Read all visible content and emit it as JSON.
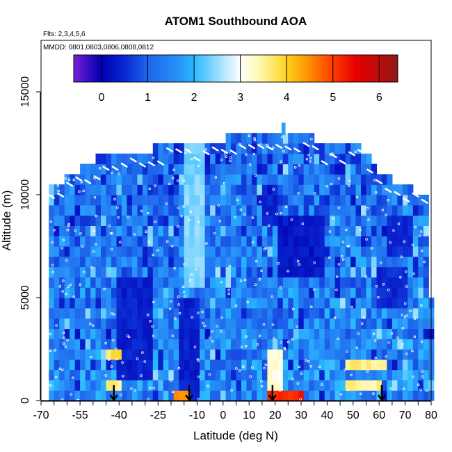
{
  "chart_data": {
    "type": "heatmap",
    "title": "ATOM1 Southbound AOA",
    "annotations": {
      "flights": "Flts: 2,3,4,5,6",
      "dates": "MMDD: 0801,0803,0806,0808,0812"
    },
    "xlabel": "Latitude (deg N)",
    "ylabel": "Altitude (m)",
    "xlim": [
      -70,
      80
    ],
    "ylim": [
      0,
      17500
    ],
    "x_ticks": [
      -70,
      -55,
      -40,
      -25,
      -10,
      0,
      10,
      20,
      30,
      40,
      50,
      60,
      70,
      80
    ],
    "x_tick_labels": [
      "-70",
      "-55",
      "-40",
      "-25",
      "-10",
      "0",
      "10",
      "20",
      "30",
      "40",
      "50",
      "60",
      "70",
      "80"
    ],
    "y_ticks": [
      0,
      5000,
      10000,
      15000
    ],
    "y_tick_labels": [
      "0",
      "5000",
      "10000",
      "15000"
    ],
    "colorbar": {
      "range": [
        -0.6,
        6.4
      ],
      "ticks": [
        0,
        1,
        2,
        3,
        4,
        5,
        6
      ],
      "tick_labels": [
        "0",
        "1",
        "2",
        "3",
        "4",
        "5",
        "6"
      ],
      "colors": [
        "#7a1fd6",
        "#0000b0",
        "#1a66e8",
        "#2ab4ff",
        "#ffffff",
        "#ffd21a",
        "#ff6a00",
        "#e60000",
        "#8b1010"
      ]
    },
    "arrows_x": [
      -42,
      -13,
      19,
      61
    ],
    "profile_ceiling": [
      [
        -67,
        10400
      ],
      [
        -59,
        10900
      ],
      [
        -47,
        11900
      ],
      [
        -25,
        12300
      ],
      [
        -22,
        12600
      ],
      [
        0,
        12600
      ],
      [
        2,
        12900
      ],
      [
        35,
        12900
      ],
      [
        38,
        12400
      ],
      [
        52,
        12400
      ],
      [
        60,
        11100
      ],
      [
        70,
        10400
      ],
      [
        79,
        10000
      ],
      [
        80,
        4900
      ]
    ],
    "features": [
      {
        "x": [
          -14,
          -8
        ],
        "y": [
          5500,
          12300
        ],
        "value": 2.4
      },
      {
        "x": [
          -16,
          -10
        ],
        "y": [
          0,
          5000
        ],
        "value": 0.4
      },
      {
        "x": [
          -19,
          -14
        ],
        "y": [
          0,
          700
        ],
        "value": 4.6
      },
      {
        "x": [
          -40,
          -28
        ],
        "y": [
          1200,
          6000
        ],
        "value": 0.4
      },
      {
        "x": [
          -44,
          -40
        ],
        "y": [
          700,
          1200
        ],
        "value": 3.6
      },
      {
        "x": [
          -44,
          -40
        ],
        "y": [
          2200,
          2600
        ],
        "value": 3.8
      },
      {
        "x": [
          22,
          38
        ],
        "y": [
          5800,
          9000
        ],
        "value": 0.3
      },
      {
        "x": [
          17,
          23
        ],
        "y": [
          0,
          2500
        ],
        "value": 3.2
      },
      {
        "x": [
          18,
          30
        ],
        "y": [
          0,
          400
        ],
        "value": 5.2
      },
      {
        "x": [
          48,
          62
        ],
        "y": [
          1600,
          2200
        ],
        "value": 3.6
      },
      {
        "x": [
          48,
          60
        ],
        "y": [
          500,
          900
        ],
        "value": 3.5
      },
      {
        "x": [
          60,
          70
        ],
        "y": [
          4300,
          6500
        ],
        "value": 0.5
      },
      {
        "x": [
          64,
          72
        ],
        "y": [
          7000,
          9000
        ],
        "value": 0.5
      },
      {
        "x": [
          15,
          21
        ],
        "y": [
          8500,
          10300
        ],
        "value": 0.4
      }
    ]
  }
}
